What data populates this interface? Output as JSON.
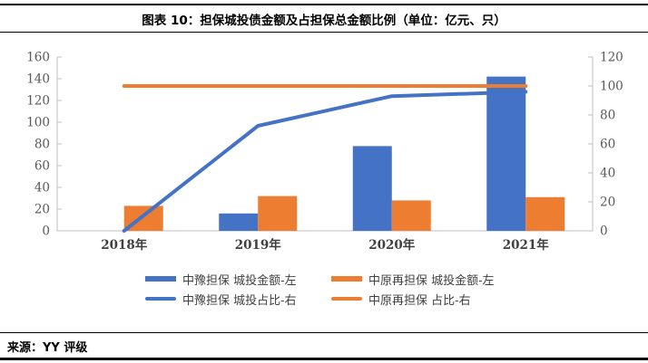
{
  "header": {
    "title": "图表 10：担保城投债金额及占担保总金额比例（单位：亿元、只）"
  },
  "chart_data": {
    "type": "bar",
    "subtype": "bar-line-combo",
    "title": "担保城投债金额及占担保总金额比例",
    "unit": "亿元、只",
    "categories": [
      "2018年",
      "2019年",
      "2020年",
      "2021年"
    ],
    "series": [
      {
        "name": "中豫担保 城投金额-左",
        "type": "bar",
        "axis": "left",
        "color": "#4472C4",
        "values": [
          0,
          16,
          78,
          142
        ]
      },
      {
        "name": "中原再担保 城投金额-左",
        "type": "bar",
        "axis": "left",
        "color": "#ED7D31",
        "values": [
          23,
          32,
          28,
          31
        ]
      },
      {
        "name": "中豫担保 城投占比-右",
        "type": "line",
        "axis": "right",
        "color": "#4472C4",
        "values": [
          0,
          72.5,
          93,
          96
        ]
      },
      {
        "name": "中原再担保 占比-右",
        "type": "line",
        "axis": "right",
        "color": "#ED7D31",
        "values": [
          100,
          100,
          100,
          100
        ]
      }
    ],
    "left_axis": {
      "min": 0,
      "max": 160,
      "step": 20,
      "ticks": [
        0,
        20,
        40,
        60,
        80,
        100,
        120,
        140,
        160
      ]
    },
    "right_axis": {
      "min": 0,
      "max": 120,
      "step": 20,
      "ticks": [
        0,
        20,
        40,
        60,
        80,
        100,
        120
      ]
    },
    "grid": false,
    "legend_position": "bottom",
    "colors": {
      "blue": "#4472C4",
      "orange": "#ED7D31",
      "axis_line": "#BFBFBF",
      "tick_label": "#595959",
      "category_label": "#3F3F3F"
    }
  },
  "footer": {
    "source": "来源：YY 评级"
  }
}
